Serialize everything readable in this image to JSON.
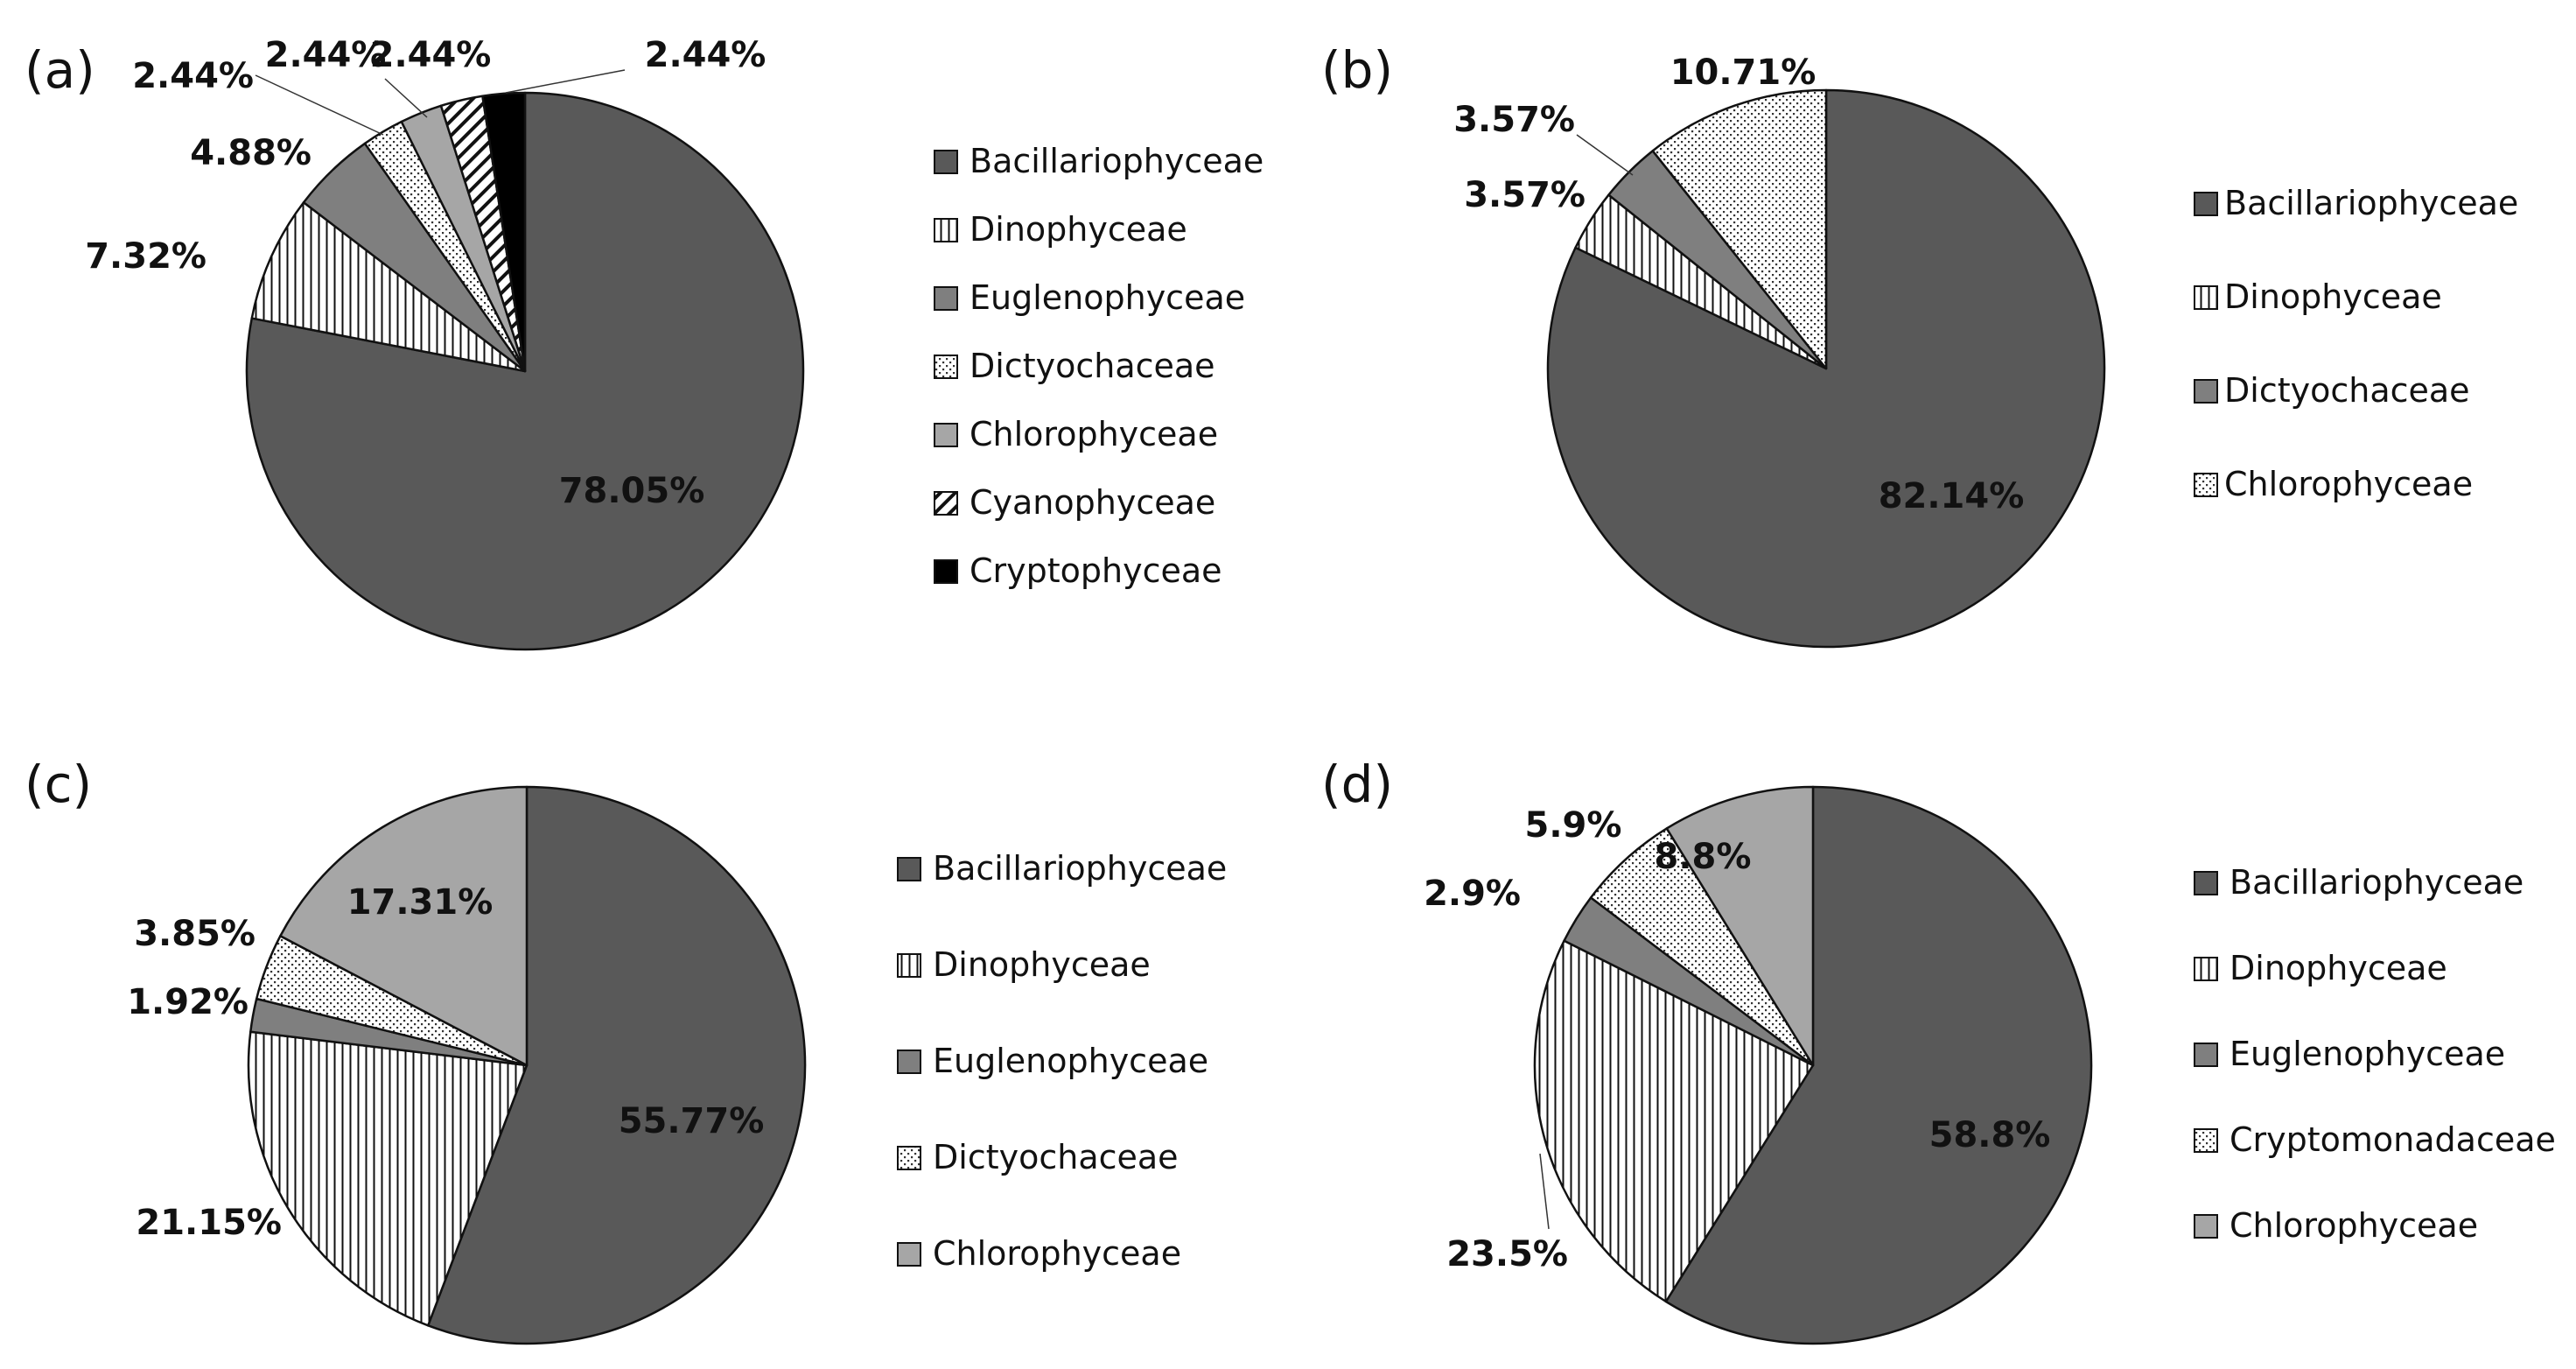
{
  "colors": {
    "bacillariophyceae": "#595959",
    "euglenophyceae": "#7f7f7f",
    "chlorophyceae": "#a6a6a6",
    "cryptophyceae": "#000000",
    "outline": "#111111",
    "background": "#ffffff"
  },
  "chart_data": [
    {
      "type": "pie",
      "panel_label": "(a)",
      "legend_position": "right",
      "slices": [
        {
          "name": "Bacillariophyceae",
          "value": 78.05,
          "label": "78.05%",
          "pattern": "solid-dark"
        },
        {
          "name": "Dinophyceae",
          "value": 7.32,
          "label": "7.32%",
          "pattern": "vertical-lines"
        },
        {
          "name": "Euglenophyceae",
          "value": 4.88,
          "label": "4.88%",
          "pattern": "solid-mid"
        },
        {
          "name": "Dictyochaceae",
          "value": 2.44,
          "label": "2.44%",
          "pattern": "dots"
        },
        {
          "name": "Chlorophyceae",
          "value": 2.44,
          "label": "2.44%",
          "pattern": "solid-light"
        },
        {
          "name": "Cyanophyceae",
          "value": 2.44,
          "label": "2.44%",
          "pattern": "diagonal-lines"
        },
        {
          "name": "Cryptophyceae",
          "value": 2.44,
          "label": "2.44%",
          "pattern": "solid-black"
        }
      ]
    },
    {
      "type": "pie",
      "panel_label": "(b)",
      "legend_position": "right",
      "slices": [
        {
          "name": "Bacillariophyceae",
          "value": 82.14,
          "label": "82.14%",
          "pattern": "solid-dark"
        },
        {
          "name": "Dinophyceae",
          "value": 3.57,
          "label": "3.57%",
          "pattern": "vertical-lines"
        },
        {
          "name": "Dictyochaceae",
          "value": 3.57,
          "label": "3.57%",
          "pattern": "solid-mid"
        },
        {
          "name": "Chlorophyceae",
          "value": 10.71,
          "label": "10.71%",
          "pattern": "dots"
        }
      ]
    },
    {
      "type": "pie",
      "panel_label": "(c)",
      "legend_position": "right",
      "slices": [
        {
          "name": "Bacillariophyceae",
          "value": 55.77,
          "label": "55.77%",
          "pattern": "solid-dark"
        },
        {
          "name": "Dinophyceae",
          "value": 21.15,
          "label": "21.15%",
          "pattern": "vertical-lines"
        },
        {
          "name": "Euglenophyceae",
          "value": 1.92,
          "label": "1.92%",
          "pattern": "solid-mid"
        },
        {
          "name": "Dictyochaceae",
          "value": 3.85,
          "label": "3.85%",
          "pattern": "dots"
        },
        {
          "name": "Chlorophyceae",
          "value": 17.31,
          "label": "17.31%",
          "pattern": "solid-light"
        }
      ]
    },
    {
      "type": "pie",
      "panel_label": "(d)",
      "legend_position": "right",
      "slices": [
        {
          "name": "Bacillariophyceae",
          "value": 58.8,
          "label": "58.8%",
          "pattern": "solid-dark"
        },
        {
          "name": "Dinophyceae",
          "value": 23.5,
          "label": "23.5%",
          "pattern": "vertical-lines"
        },
        {
          "name": "Euglenophyceae",
          "value": 2.9,
          "label": "2.9%",
          "pattern": "solid-mid"
        },
        {
          "name": "Cryptomonadaceae",
          "value": 5.9,
          "label": "5.9%",
          "pattern": "dots"
        },
        {
          "name": "Chlorophyceae",
          "value": 8.8,
          "label": "8.8%",
          "pattern": "solid-light"
        }
      ]
    }
  ]
}
